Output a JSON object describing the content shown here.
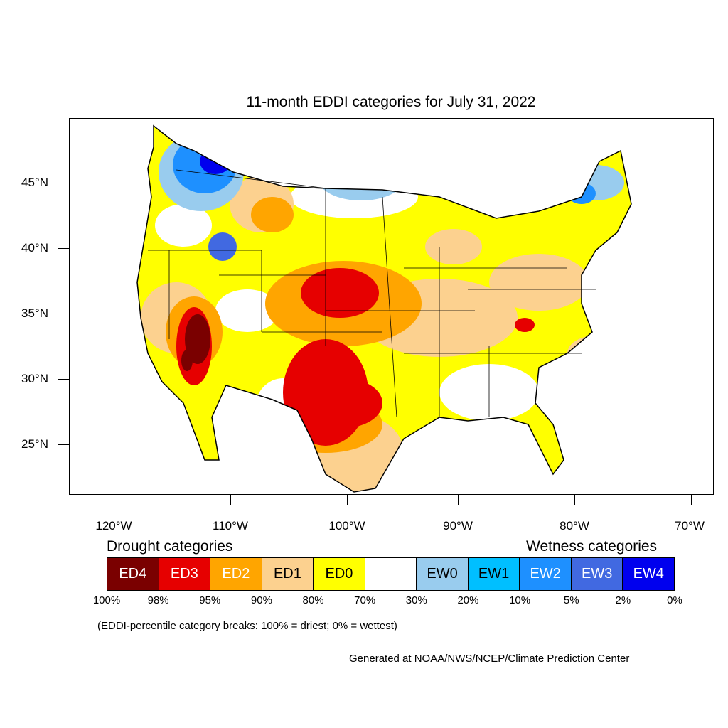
{
  "title": "11-month EDDI categories for July 31, 2022",
  "axes": {
    "lat_labels": [
      "45°N",
      "40°N",
      "35°N",
      "30°N",
      "25°N"
    ],
    "lon_labels": [
      "120°W",
      "110°W",
      "100°W",
      "90°W",
      "80°W",
      "70°W"
    ]
  },
  "legend": {
    "drought_heading": "Drought categories",
    "wetness_heading": "Wetness categories",
    "categories": [
      {
        "label": "ED4",
        "color": "#7a0000",
        "text_color": "#ffffff"
      },
      {
        "label": "ED3",
        "color": "#e60000",
        "text_color": "#ffffff"
      },
      {
        "label": "ED2",
        "color": "#ffa500",
        "text_color": "#ffffff"
      },
      {
        "label": "ED1",
        "color": "#fcd18f",
        "text_color": "#000000"
      },
      {
        "label": "ED0",
        "color": "#ffff00",
        "text_color": "#000000"
      },
      {
        "label": "",
        "color": "#ffffff",
        "text_color": "#000000"
      },
      {
        "label": "EW0",
        "color": "#99ccee",
        "text_color": "#000000"
      },
      {
        "label": "EW1",
        "color": "#00bfff",
        "text_color": "#000000"
      },
      {
        "label": "EW2",
        "color": "#1e90ff",
        "text_color": "#ffffff"
      },
      {
        "label": "EW3",
        "color": "#4169e1",
        "text_color": "#ffffff"
      },
      {
        "label": "EW4",
        "color": "#0000ee",
        "text_color": "#ffffff"
      }
    ],
    "percentiles": [
      "100%",
      "98%",
      "95%",
      "90%",
      "80%",
      "70%",
      "30%",
      "20%",
      "10%",
      "5%",
      "2%",
      "0%"
    ]
  },
  "note": "(EDDI-percentile category breaks: 100% = driest; 0% = wettest)",
  "credit": "Generated at NOAA/NWS/NCEP/Climate Prediction Center"
}
